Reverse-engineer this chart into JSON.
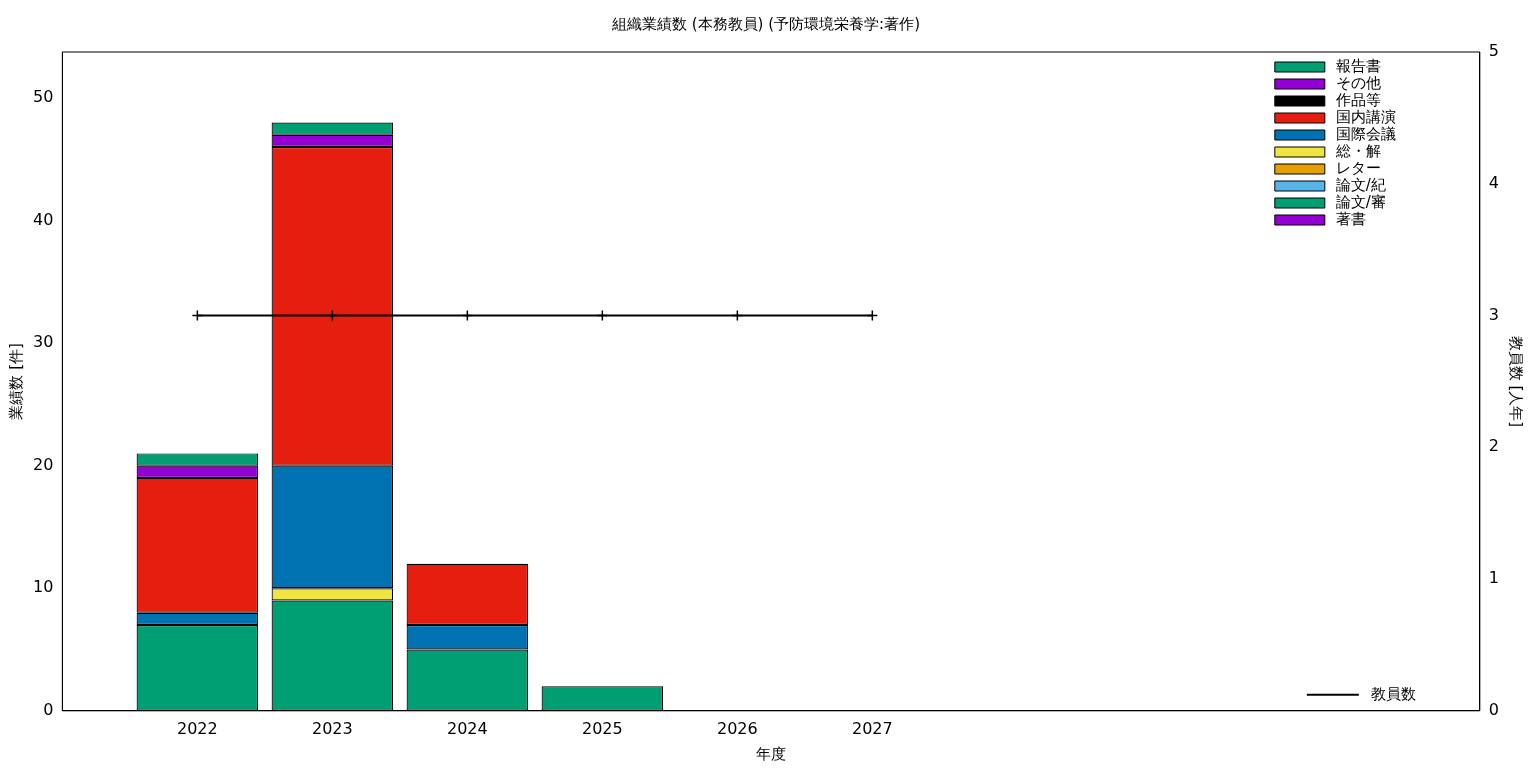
{
  "chart_data": {
    "type": "bar",
    "title": "組織業績数 (本務教員) (予防環境栄養学:著作)",
    "xlabel": "年度",
    "ylabel": "業績数 [件]",
    "y2label": "教員数 [人年]",
    "x": [
      2022,
      2023,
      2024,
      2025,
      2026,
      2027
    ],
    "xlim": [
      2021,
      2031.5
    ],
    "xticks": [
      2022,
      2023,
      2024,
      2025,
      2026,
      2027
    ],
    "ylim": [
      0,
      53.75
    ],
    "yticks": [
      0,
      10,
      20,
      30,
      40,
      50
    ],
    "y2lim": [
      0,
      5
    ],
    "y2ticks": [
      0,
      1,
      2,
      3,
      4,
      5
    ],
    "stacked": true,
    "grid": false,
    "legend": "top right",
    "series": [
      {
        "name": "著書",
        "color": "#9400d3",
        "values": [
          0,
          0,
          0,
          0,
          0,
          0
        ]
      },
      {
        "name": "論文/審",
        "color": "#009e73",
        "values": [
          7,
          9,
          5,
          2,
          0,
          0
        ]
      },
      {
        "name": "論文/紀",
        "color": "#56b4e9",
        "values": [
          0,
          0,
          0,
          0,
          0,
          0
        ]
      },
      {
        "name": "レター",
        "color": "#e69f00",
        "values": [
          0,
          0,
          0,
          0,
          0,
          0
        ]
      },
      {
        "name": "総・解",
        "color": "#f0e442",
        "values": [
          0,
          1,
          0,
          0,
          0,
          0
        ]
      },
      {
        "name": "国際会議",
        "color": "#0072b2",
        "values": [
          1,
          10,
          2,
          0,
          0,
          0
        ]
      },
      {
        "name": "国内講演",
        "color": "#e51e10",
        "values": [
          11,
          26,
          5,
          0,
          0,
          0
        ]
      },
      {
        "name": "作品等",
        "color": "#000000",
        "values": [
          0,
          0,
          0,
          0,
          0,
          0
        ]
      },
      {
        "name": "その他",
        "color": "#9400d3",
        "values": [
          1,
          1,
          0,
          0,
          0,
          0
        ]
      },
      {
        "name": "報告書",
        "color": "#009e73",
        "values": [
          1,
          1,
          0,
          0,
          0,
          0
        ]
      },
      {
        "name": "教員数",
        "type": "line",
        "axis": "y2",
        "color": "#000000",
        "marker": "cross",
        "line_style": "solid",
        "values": [
          3,
          3,
          3,
          3,
          3,
          3
        ]
      }
    ]
  }
}
